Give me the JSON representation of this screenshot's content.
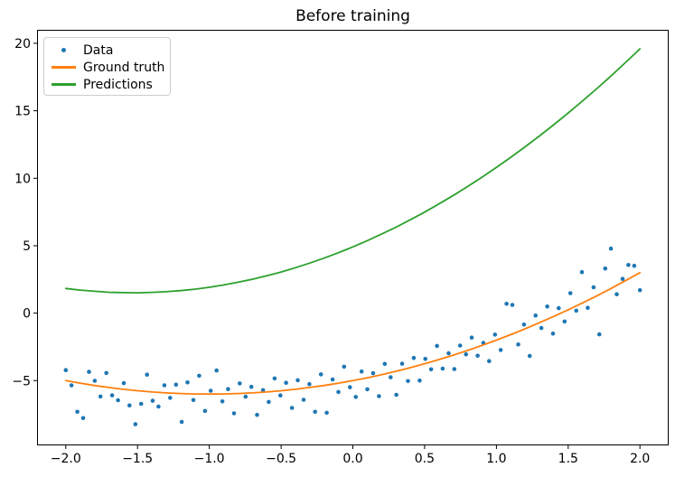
{
  "figure": {
    "background": "#ffffff",
    "axis_color": "#000000"
  },
  "chart_data": {
    "type": "scatter",
    "title": "Before training",
    "xlabel": "",
    "ylabel": "",
    "grid": false,
    "xlim": [
      -2.2,
      2.2
    ],
    "ylim": [
      -9.8,
      21.0
    ],
    "x_ticks": [
      -2.0,
      -1.5,
      -1.0,
      -0.5,
      0.0,
      0.5,
      1.0,
      1.5,
      2.0
    ],
    "x_tick_labels": [
      "−2.0",
      "−1.5",
      "−1.0",
      "−0.5",
      "0.0",
      "0.5",
      "1.0",
      "1.5",
      "2.0"
    ],
    "y_ticks": [
      -5,
      0,
      5,
      10,
      15,
      20
    ],
    "y_tick_labels": [
      "−5",
      "0",
      "5",
      "10",
      "15",
      "20"
    ],
    "legend": {
      "position": "upper left",
      "labels": [
        "Data",
        "Ground truth",
        "Predictions"
      ]
    },
    "series": [
      {
        "name": "Data",
        "type": "scatter",
        "color": "#1f77b4",
        "marker": "point",
        "points": [
          [
            -2.0,
            -4.22
          ],
          [
            -1.96,
            -5.35
          ],
          [
            -1.919,
            -7.31
          ],
          [
            -1.879,
            -7.78
          ],
          [
            -1.838,
            -4.35
          ],
          [
            -1.798,
            -5.01
          ],
          [
            -1.758,
            -6.18
          ],
          [
            -1.717,
            -4.44
          ],
          [
            -1.677,
            -6.09
          ],
          [
            -1.636,
            -6.45
          ],
          [
            -1.596,
            -5.19
          ],
          [
            -1.556,
            -6.84
          ],
          [
            -1.515,
            -8.23
          ],
          [
            -1.475,
            -6.72
          ],
          [
            -1.434,
            -4.56
          ],
          [
            -1.394,
            -6.49
          ],
          [
            -1.354,
            -6.92
          ],
          [
            -1.313,
            -5.35
          ],
          [
            -1.273,
            -6.28
          ],
          [
            -1.232,
            -5.3
          ],
          [
            -1.192,
            -8.06
          ],
          [
            -1.152,
            -5.13
          ],
          [
            -1.111,
            -6.44
          ],
          [
            -1.071,
            -4.64
          ],
          [
            -1.03,
            -7.25
          ],
          [
            -0.99,
            -5.75
          ],
          [
            -0.949,
            -4.25
          ],
          [
            -0.909,
            -6.54
          ],
          [
            -0.869,
            -5.63
          ],
          [
            -0.828,
            -7.42
          ],
          [
            -0.788,
            -5.21
          ],
          [
            -0.747,
            -6.19
          ],
          [
            -0.707,
            -5.46
          ],
          [
            -0.667,
            -7.54
          ],
          [
            -0.626,
            -5.71
          ],
          [
            -0.586,
            -6.58
          ],
          [
            -0.545,
            -4.84
          ],
          [
            -0.505,
            -6.1
          ],
          [
            -0.465,
            -5.16
          ],
          [
            -0.424,
            -7.02
          ],
          [
            -0.384,
            -4.97
          ],
          [
            -0.343,
            -6.42
          ],
          [
            -0.303,
            -5.26
          ],
          [
            -0.263,
            -7.31
          ],
          [
            -0.222,
            -4.54
          ],
          [
            -0.182,
            -7.38
          ],
          [
            -0.141,
            -4.91
          ],
          [
            -0.101,
            -5.84
          ],
          [
            -0.061,
            -3.97
          ],
          [
            -0.02,
            -5.49
          ],
          [
            0.02,
            -6.21
          ],
          [
            0.061,
            -4.32
          ],
          [
            0.101,
            -5.64
          ],
          [
            0.141,
            -4.45
          ],
          [
            0.182,
            -6.15
          ],
          [
            0.222,
            -3.76
          ],
          [
            0.263,
            -4.75
          ],
          [
            0.303,
            -6.05
          ],
          [
            0.343,
            -3.75
          ],
          [
            0.384,
            -5.03
          ],
          [
            0.424,
            -3.32
          ],
          [
            0.465,
            -5.0
          ],
          [
            0.505,
            -3.39
          ],
          [
            0.545,
            -4.16
          ],
          [
            0.586,
            -2.43
          ],
          [
            0.626,
            -4.11
          ],
          [
            0.667,
            -2.97
          ],
          [
            0.707,
            -4.14
          ],
          [
            0.747,
            -2.4
          ],
          [
            0.788,
            -3.05
          ],
          [
            0.828,
            -1.81
          ],
          [
            0.869,
            -3.16
          ],
          [
            0.909,
            -2.21
          ],
          [
            0.949,
            -3.55
          ],
          [
            0.99,
            -1.59
          ],
          [
            1.03,
            -2.73
          ],
          [
            1.071,
            0.69
          ],
          [
            1.111,
            0.61
          ],
          [
            1.152,
            -2.32
          ],
          [
            1.192,
            -0.85
          ],
          [
            1.232,
            -3.17
          ],
          [
            1.273,
            -0.18
          ],
          [
            1.313,
            -1.1
          ],
          [
            1.354,
            0.49
          ],
          [
            1.394,
            -1.52
          ],
          [
            1.434,
            0.37
          ],
          [
            1.475,
            -0.62
          ],
          [
            1.515,
            1.48
          ],
          [
            1.556,
            0.18
          ],
          [
            1.596,
            3.04
          ],
          [
            1.636,
            0.4
          ],
          [
            1.677,
            1.92
          ],
          [
            1.717,
            -1.57
          ],
          [
            1.758,
            3.31
          ],
          [
            1.798,
            4.78
          ],
          [
            1.838,
            1.4
          ],
          [
            1.879,
            2.54
          ],
          [
            1.919,
            3.57
          ],
          [
            1.96,
            3.51
          ],
          [
            2.0,
            1.7
          ]
        ]
      },
      {
        "name": "Ground truth",
        "type": "line",
        "color": "#ff7f0e",
        "points": [
          [
            -2.0,
            -5.0
          ],
          [
            -1.9,
            -5.19
          ],
          [
            -1.8,
            -5.36
          ],
          [
            -1.7,
            -5.51
          ],
          [
            -1.6,
            -5.64
          ],
          [
            -1.5,
            -5.75
          ],
          [
            -1.4,
            -5.84
          ],
          [
            -1.3,
            -5.91
          ],
          [
            -1.2,
            -5.96
          ],
          [
            -1.1,
            -5.99
          ],
          [
            -1.0,
            -6.0
          ],
          [
            -0.9,
            -5.99
          ],
          [
            -0.8,
            -5.96
          ],
          [
            -0.7,
            -5.91
          ],
          [
            -0.6,
            -5.84
          ],
          [
            -0.5,
            -5.75
          ],
          [
            -0.4,
            -5.64
          ],
          [
            -0.3,
            -5.51
          ],
          [
            -0.2,
            -5.36
          ],
          [
            -0.1,
            -5.19
          ],
          [
            0.0,
            -5.0
          ],
          [
            0.1,
            -4.79
          ],
          [
            0.2,
            -4.56
          ],
          [
            0.3,
            -4.31
          ],
          [
            0.4,
            -4.04
          ],
          [
            0.5,
            -3.75
          ],
          [
            0.6,
            -3.44
          ],
          [
            0.7,
            -3.11
          ],
          [
            0.8,
            -2.76
          ],
          [
            0.9,
            -2.39
          ],
          [
            1.0,
            -2.0
          ],
          [
            1.1,
            -1.59
          ],
          [
            1.2,
            -1.16
          ],
          [
            1.3,
            -0.71
          ],
          [
            1.4,
            -0.24
          ],
          [
            1.5,
            0.25
          ],
          [
            1.6,
            0.76
          ],
          [
            1.7,
            1.29
          ],
          [
            1.8,
            1.84
          ],
          [
            1.9,
            2.41
          ],
          [
            2.0,
            3.0
          ]
        ]
      },
      {
        "name": "Predictions",
        "type": "line",
        "color": "#2ca02c",
        "points": [
          [
            -2.0,
            1.83
          ],
          [
            -1.9,
            1.71
          ],
          [
            -1.8,
            1.62
          ],
          [
            -1.7,
            1.55
          ],
          [
            -1.6,
            1.52
          ],
          [
            -1.5,
            1.51
          ],
          [
            -1.4,
            1.54
          ],
          [
            -1.3,
            1.59
          ],
          [
            -1.2,
            1.67
          ],
          [
            -1.1,
            1.78
          ],
          [
            -1.0,
            1.92
          ],
          [
            -0.9,
            2.09
          ],
          [
            -0.8,
            2.29
          ],
          [
            -0.7,
            2.51
          ],
          [
            -0.6,
            2.77
          ],
          [
            -0.5,
            3.05
          ],
          [
            -0.4,
            3.37
          ],
          [
            -0.3,
            3.71
          ],
          [
            -0.2,
            4.08
          ],
          [
            -0.1,
            4.48
          ],
          [
            0.0,
            4.91
          ],
          [
            0.1,
            5.37
          ],
          [
            0.2,
            5.86
          ],
          [
            0.3,
            6.37
          ],
          [
            0.4,
            6.92
          ],
          [
            0.5,
            7.49
          ],
          [
            0.6,
            8.1
          ],
          [
            0.7,
            8.73
          ],
          [
            0.8,
            9.39
          ],
          [
            0.9,
            10.08
          ],
          [
            1.0,
            10.8
          ],
          [
            1.1,
            11.55
          ],
          [
            1.2,
            12.33
          ],
          [
            1.3,
            13.13
          ],
          [
            1.4,
            13.97
          ],
          [
            1.5,
            14.83
          ],
          [
            1.6,
            15.73
          ],
          [
            1.7,
            16.65
          ],
          [
            1.8,
            17.6
          ],
          [
            1.9,
            18.58
          ],
          [
            2.0,
            19.59
          ]
        ]
      }
    ]
  }
}
